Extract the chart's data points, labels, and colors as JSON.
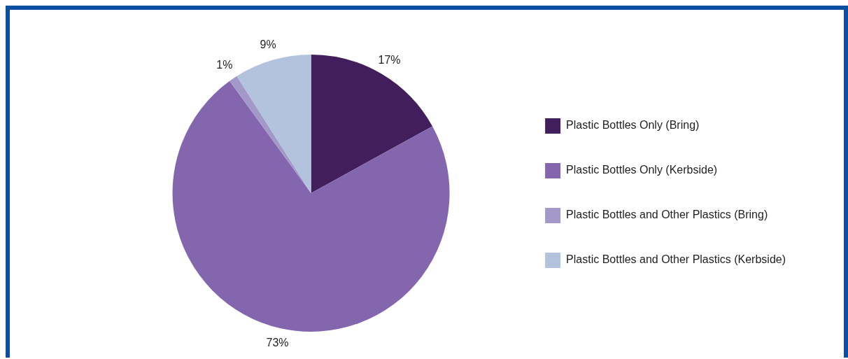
{
  "chart_data": {
    "type": "pie",
    "categories": [
      "Plastic Bottles Only (Bring)",
      "Plastic Bottles Only (Kerbside)",
      "Plastic Bottles and Other Plastics (Bring)",
      "Plastic Bottles and Other Plastics (Kerbside)"
    ],
    "values": [
      17,
      73,
      1,
      9
    ],
    "colors": [
      "#421f5c",
      "#8366ae",
      "#a399c9",
      "#b3c3de"
    ],
    "value_labels": [
      "17%",
      "73%",
      "1%",
      "9%"
    ],
    "legend": "right"
  }
}
